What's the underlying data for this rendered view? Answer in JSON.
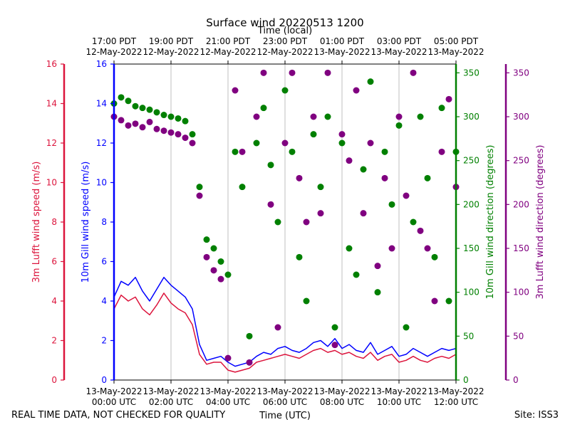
{
  "chart_data": {
    "type": "line+scatter",
    "title": "Surface wind 20220513 1200",
    "top_xlabel": "Time (local)",
    "xlabel": "Time (UTC)",
    "footer_left": "REAL TIME DATA, NOT CHECKED FOR QUALITY",
    "footer_right": "Site: ISS3",
    "xlim_hours_utc": [
      0,
      12
    ],
    "x_ticks_bottom": [
      {
        "h": 0,
        "l1": "13-May-2022",
        "l2": "00:00 UTC"
      },
      {
        "h": 2,
        "l1": "13-May-2022",
        "l2": "02:00 UTC"
      },
      {
        "h": 4,
        "l1": "13-May-2022",
        "l2": "04:00 UTC"
      },
      {
        "h": 6,
        "l1": "13-May-2022",
        "l2": "06:00 UTC"
      },
      {
        "h": 8,
        "l1": "13-May-2022",
        "l2": "08:00 UTC"
      },
      {
        "h": 10,
        "l1": "13-May-2022",
        "l2": "10:00 UTC"
      },
      {
        "h": 12,
        "l1": "13-May-2022",
        "l2": "12:00 UTC"
      }
    ],
    "x_ticks_top": [
      {
        "h": 0,
        "l1": "17:00 PDT",
        "l2": "12-May-2022"
      },
      {
        "h": 2,
        "l1": "19:00 PDT",
        "l2": "12-May-2022"
      },
      {
        "h": 4,
        "l1": "21:00 PDT",
        "l2": "12-May-2022"
      },
      {
        "h": 6,
        "l1": "23:00 PDT",
        "l2": "12-May-2022"
      },
      {
        "h": 8,
        "l1": "01:00 PDT",
        "l2": "13-May-2022"
      },
      {
        "h": 10,
        "l1": "03:00 PDT",
        "l2": "13-May-2022"
      },
      {
        "h": 12,
        "l1": "05:00 PDT",
        "l2": "13-May-2022"
      }
    ],
    "axes": {
      "lufft_speed": {
        "label": "3m Lufft wind speed (m/s)",
        "ylim": [
          0,
          16
        ],
        "ticks": [
          0,
          2,
          4,
          6,
          8,
          10,
          12,
          14,
          16
        ],
        "color": "#dc143c"
      },
      "gill_speed": {
        "label": "10m Gill wind speed (m/s)",
        "ylim": [
          0,
          16
        ],
        "ticks": [
          0,
          2,
          4,
          6,
          8,
          10,
          12,
          14,
          16
        ],
        "color": "#0000ff"
      },
      "gill_dir": {
        "label": "10m Gill wind direction (degrees)",
        "ylim": [
          0,
          360
        ],
        "ticks": [
          0,
          50,
          100,
          150,
          200,
          250,
          300,
          350
        ],
        "color": "#008000"
      },
      "lufft_dir": {
        "label": "3m Lufft wind direction (degrees)",
        "ylim": [
          0,
          360
        ],
        "ticks": [
          0,
          50,
          100,
          150,
          200,
          250,
          300,
          350
        ],
        "color": "#800080"
      }
    },
    "series": [
      {
        "name": "10m Gill wind speed",
        "kind": "line",
        "color": "#0000ff",
        "x": [
          0,
          0.25,
          0.5,
          0.75,
          1,
          1.25,
          1.5,
          1.75,
          2,
          2.25,
          2.5,
          2.75,
          3,
          3.25,
          3.5,
          3.75,
          4,
          4.25,
          4.5,
          4.75,
          5,
          5.25,
          5.5,
          5.75,
          6,
          6.25,
          6.5,
          6.75,
          7,
          7.25,
          7.5,
          7.75,
          8,
          8.25,
          8.5,
          8.75,
          9,
          9.25,
          9.5,
          9.75,
          10,
          10.25,
          10.5,
          10.75,
          11,
          11.25,
          11.5,
          11.75,
          12
        ],
        "values": [
          4.2,
          5.0,
          4.8,
          5.2,
          4.5,
          4.0,
          4.6,
          5.2,
          4.8,
          4.5,
          4.2,
          3.6,
          1.8,
          1.0,
          1.1,
          1.2,
          0.9,
          0.7,
          0.8,
          0.9,
          1.2,
          1.4,
          1.3,
          1.6,
          1.7,
          1.5,
          1.4,
          1.6,
          1.9,
          2.0,
          1.7,
          2.1,
          1.6,
          1.8,
          1.5,
          1.4,
          1.9,
          1.3,
          1.5,
          1.7,
          1.2,
          1.3,
          1.6,
          1.4,
          1.2,
          1.4,
          1.6,
          1.5,
          1.6
        ]
      },
      {
        "name": "3m Lufft wind speed",
        "kind": "line",
        "color": "#dc143c",
        "x": [
          0,
          0.25,
          0.5,
          0.75,
          1,
          1.25,
          1.5,
          1.75,
          2,
          2.25,
          2.5,
          2.75,
          3,
          3.25,
          3.5,
          3.75,
          4,
          4.25,
          4.5,
          4.75,
          5,
          5.25,
          5.5,
          5.75,
          6,
          6.25,
          6.5,
          6.75,
          7,
          7.25,
          7.5,
          7.75,
          8,
          8.25,
          8.5,
          8.75,
          9,
          9.25,
          9.5,
          9.75,
          10,
          10.25,
          10.5,
          10.75,
          11,
          11.25,
          11.5,
          11.75,
          12
        ],
        "values": [
          3.6,
          4.3,
          4.0,
          4.2,
          3.6,
          3.3,
          3.8,
          4.4,
          3.9,
          3.6,
          3.4,
          2.8,
          1.3,
          0.8,
          0.9,
          0.9,
          0.5,
          0.4,
          0.5,
          0.6,
          0.9,
          1.0,
          1.1,
          1.2,
          1.3,
          1.2,
          1.1,
          1.3,
          1.5,
          1.6,
          1.4,
          1.5,
          1.3,
          1.4,
          1.2,
          1.1,
          1.4,
          1.0,
          1.2,
          1.3,
          0.9,
          1.0,
          1.2,
          1.0,
          0.9,
          1.1,
          1.2,
          1.1,
          1.3
        ]
      },
      {
        "name": "10m Gill wind direction",
        "kind": "scatter",
        "color": "#008000",
        "x": [
          0,
          0.25,
          0.5,
          0.75,
          1,
          1.25,
          1.5,
          1.75,
          2,
          2.25,
          2.5,
          2.75,
          3,
          3.25,
          3.5,
          3.75,
          4,
          4.25,
          4.5,
          4.75,
          5,
          5.25,
          5.5,
          5.75,
          6,
          6.25,
          6.5,
          6.75,
          7,
          7.25,
          7.5,
          7.75,
          8,
          8.25,
          8.5,
          8.75,
          9,
          9.25,
          9.5,
          9.75,
          10,
          10.25,
          10.5,
          10.75,
          11,
          11.25,
          11.5,
          11.75,
          12
        ],
        "values": [
          315,
          322,
          318,
          312,
          310,
          308,
          305,
          302,
          300,
          298,
          295,
          280,
          220,
          160,
          150,
          135,
          120,
          260,
          220,
          50,
          270,
          310,
          245,
          180,
          330,
          260,
          140,
          90,
          280,
          220,
          300,
          60,
          270,
          150,
          120,
          240,
          340,
          100,
          260,
          200,
          290,
          60,
          180,
          300,
          230,
          140,
          310,
          90,
          260
        ]
      },
      {
        "name": "3m Lufft wind direction",
        "kind": "scatter",
        "color": "#800080",
        "x": [
          0,
          0.25,
          0.5,
          0.75,
          1,
          1.25,
          1.5,
          1.75,
          2,
          2.25,
          2.5,
          2.75,
          3,
          3.25,
          3.5,
          3.75,
          4,
          4.25,
          4.5,
          4.75,
          5,
          5.25,
          5.5,
          5.75,
          6,
          6.25,
          6.5,
          6.75,
          7,
          7.25,
          7.5,
          7.75,
          8,
          8.25,
          8.5,
          8.75,
          9,
          9.25,
          9.5,
          9.75,
          10,
          10.25,
          10.5,
          10.75,
          11,
          11.25,
          11.5,
          11.75,
          12
        ],
        "values": [
          300,
          296,
          290,
          292,
          288,
          294,
          286,
          284,
          282,
          280,
          276,
          270,
          210,
          140,
          125,
          115,
          25,
          330,
          260,
          20,
          300,
          350,
          200,
          60,
          270,
          350,
          230,
          180,
          300,
          190,
          350,
          40,
          280,
          250,
          330,
          190,
          270,
          130,
          230,
          150,
          300,
          210,
          350,
          170,
          150,
          90,
          260,
          320,
          220
        ]
      }
    ]
  }
}
